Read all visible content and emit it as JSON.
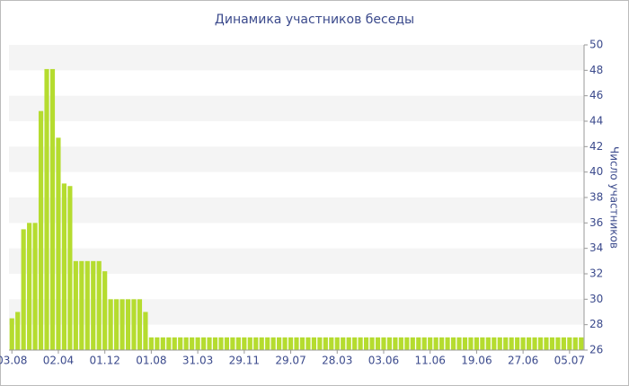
{
  "chart_data": {
    "type": "bar",
    "title": "Динамика участников беседы",
    "y_axis_label": "Число участников",
    "categories": [
      "03.08",
      null,
      null,
      null,
      null,
      null,
      null,
      null,
      "02.04",
      null,
      null,
      null,
      null,
      null,
      null,
      null,
      "01.12",
      null,
      null,
      null,
      null,
      null,
      null,
      null,
      "01.08",
      null,
      null,
      null,
      null,
      null,
      null,
      null,
      "31.03",
      null,
      null,
      null,
      null,
      null,
      null,
      null,
      "29.11",
      null,
      null,
      null,
      null,
      null,
      null,
      null,
      "29.07",
      null,
      null,
      null,
      null,
      null,
      null,
      null,
      "28.03",
      null,
      null,
      null,
      null,
      null,
      null,
      null,
      "03.06",
      null,
      null,
      null,
      null,
      null,
      null,
      null,
      "11.06",
      null,
      null,
      null,
      null,
      null,
      null,
      null,
      "19.06",
      null,
      null,
      null,
      null,
      null,
      null,
      null,
      "27.06",
      null,
      null,
      null,
      null,
      null,
      null,
      null,
      "05.07",
      null,
      null
    ],
    "values": [
      28.5,
      29,
      35.5,
      36,
      36,
      44.8,
      48.1,
      48.1,
      42.7,
      39.1,
      38.9,
      33,
      33,
      33,
      33,
      33,
      32.2,
      30,
      30,
      30,
      30,
      30,
      30,
      29,
      27,
      27,
      27,
      27,
      27,
      27,
      27,
      27,
      27,
      27,
      27,
      27,
      27,
      27,
      27,
      27,
      27,
      27,
      27,
      27,
      27,
      27,
      27,
      27,
      27,
      27,
      27,
      27,
      27,
      27,
      27,
      27,
      27,
      27,
      27,
      27,
      27,
      27,
      27,
      27,
      27,
      27,
      27,
      27,
      27,
      27,
      27,
      27,
      27,
      27,
      27,
      27,
      27,
      27,
      27,
      27,
      27,
      27,
      27,
      27,
      27,
      27,
      27,
      27,
      27,
      27,
      27,
      27,
      27,
      27,
      27,
      27,
      27,
      27,
      27
    ],
    "color": "#b5dc2f",
    "ylim": [
      26,
      50
    ],
    "yticks": [
      26,
      28,
      30,
      32,
      34,
      36,
      38,
      40,
      42,
      44,
      46,
      48,
      50
    ],
    "grid": true
  }
}
